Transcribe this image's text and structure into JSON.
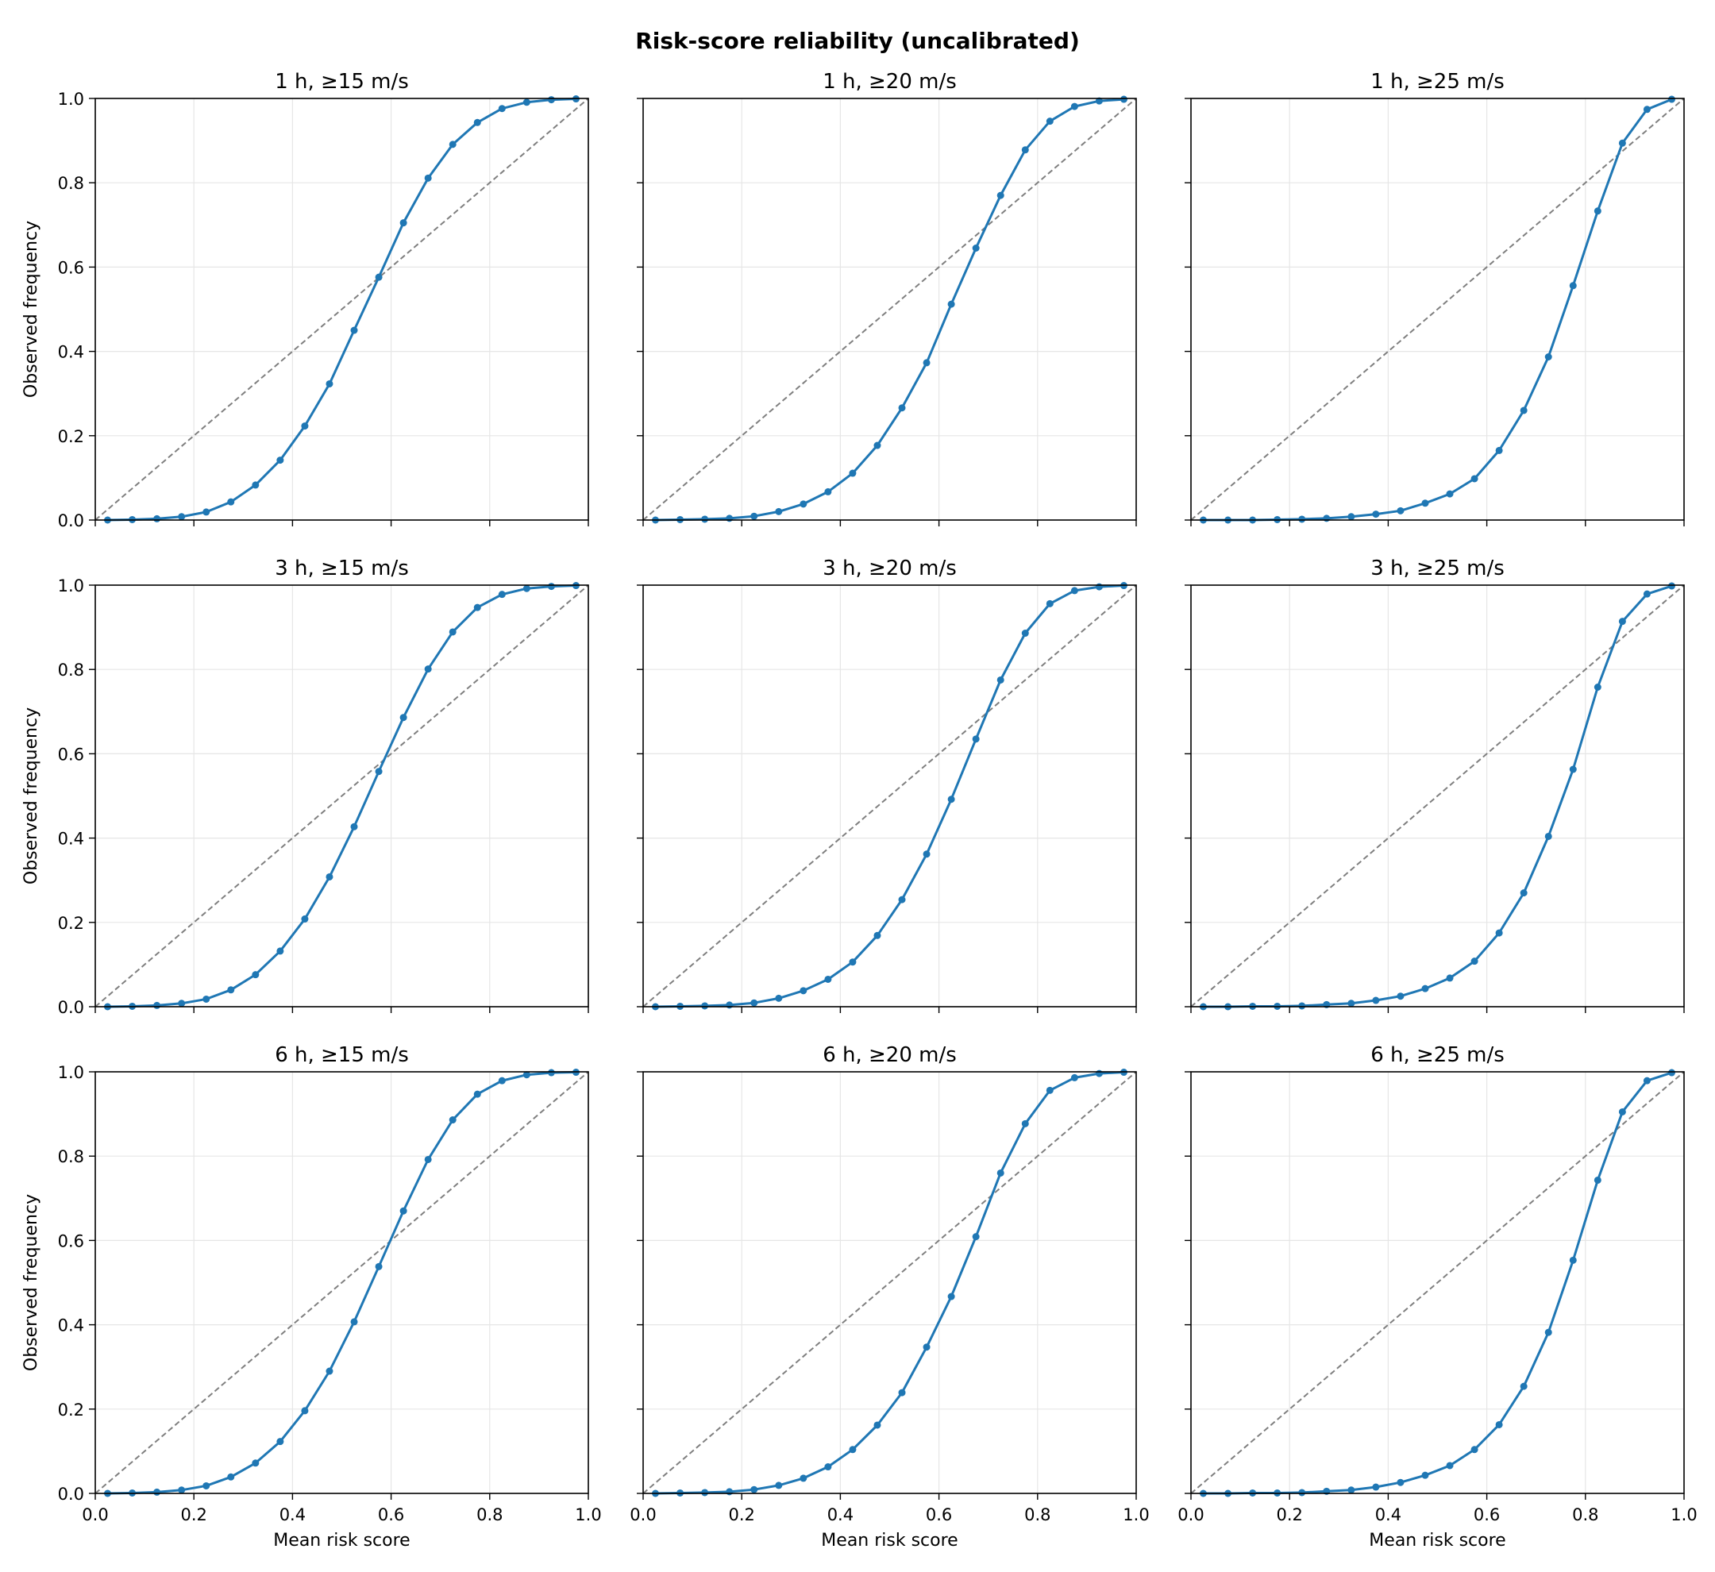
{
  "figure_title": "Risk-score reliability (uncalibrated)",
  "colors": {
    "series": "#1f77b4",
    "diagonal": "#7f7f7f",
    "grid": "#e6e6e6",
    "axes": "#000000"
  },
  "chart_data": [
    {
      "type": "line",
      "title": "1 h, ≥15 m/s",
      "xlabel": "",
      "ylabel": "Observed frequency",
      "xlim": [
        0,
        1
      ],
      "ylim": [
        0,
        1
      ],
      "grid": true,
      "diagonal": true,
      "x": [
        0.025,
        0.075,
        0.125,
        0.175,
        0.225,
        0.275,
        0.325,
        0.375,
        0.425,
        0.475,
        0.525,
        0.575,
        0.625,
        0.675,
        0.725,
        0.775,
        0.825,
        0.875,
        0.925,
        0.975
      ],
      "y": [
        0.0,
        0.001,
        0.003,
        0.008,
        0.019,
        0.043,
        0.083,
        0.142,
        0.223,
        0.323,
        0.45,
        0.576,
        0.705,
        0.811,
        0.891,
        0.943,
        0.976,
        0.991,
        0.997,
        0.999
      ]
    },
    {
      "type": "line",
      "title": "1 h, ≥20 m/s",
      "xlabel": "",
      "ylabel": "",
      "xlim": [
        0,
        1
      ],
      "ylim": [
        0,
        1
      ],
      "grid": true,
      "diagonal": true,
      "x": [
        0.025,
        0.075,
        0.125,
        0.175,
        0.225,
        0.275,
        0.325,
        0.375,
        0.425,
        0.475,
        0.525,
        0.575,
        0.625,
        0.675,
        0.725,
        0.775,
        0.825,
        0.875,
        0.925,
        0.975
      ],
      "y": [
        0.0,
        0.001,
        0.002,
        0.004,
        0.009,
        0.02,
        0.038,
        0.067,
        0.111,
        0.177,
        0.266,
        0.373,
        0.512,
        0.645,
        0.77,
        0.878,
        0.946,
        0.981,
        0.994,
        0.998
      ]
    },
    {
      "type": "line",
      "title": "1 h, ≥25 m/s",
      "xlabel": "",
      "ylabel": "",
      "xlim": [
        0,
        1
      ],
      "ylim": [
        0,
        1
      ],
      "grid": true,
      "diagonal": true,
      "x": [
        0.025,
        0.075,
        0.125,
        0.175,
        0.225,
        0.275,
        0.325,
        0.375,
        0.425,
        0.475,
        0.525,
        0.575,
        0.625,
        0.675,
        0.725,
        0.775,
        0.825,
        0.875,
        0.925,
        0.975
      ],
      "y": [
        0.0,
        0.0,
        0.0,
        0.001,
        0.002,
        0.004,
        0.008,
        0.014,
        0.022,
        0.04,
        0.062,
        0.098,
        0.165,
        0.26,
        0.387,
        0.556,
        0.733,
        0.894,
        0.974,
        0.998
      ]
    },
    {
      "type": "line",
      "title": "3 h, ≥15 m/s",
      "xlabel": "",
      "ylabel": "Observed frequency",
      "xlim": [
        0,
        1
      ],
      "ylim": [
        0,
        1
      ],
      "grid": true,
      "diagonal": true,
      "x": [
        0.025,
        0.075,
        0.125,
        0.175,
        0.225,
        0.275,
        0.325,
        0.375,
        0.425,
        0.475,
        0.525,
        0.575,
        0.625,
        0.675,
        0.725,
        0.775,
        0.825,
        0.875,
        0.925,
        0.975
      ],
      "y": [
        0.0,
        0.001,
        0.003,
        0.008,
        0.018,
        0.04,
        0.076,
        0.132,
        0.208,
        0.308,
        0.427,
        0.558,
        0.686,
        0.801,
        0.889,
        0.947,
        0.978,
        0.992,
        0.997,
        0.999
      ]
    },
    {
      "type": "line",
      "title": "3 h, ≥20 m/s",
      "xlabel": "",
      "ylabel": "",
      "xlim": [
        0,
        1
      ],
      "ylim": [
        0,
        1
      ],
      "grid": true,
      "diagonal": true,
      "x": [
        0.025,
        0.075,
        0.125,
        0.175,
        0.225,
        0.275,
        0.325,
        0.375,
        0.425,
        0.475,
        0.525,
        0.575,
        0.625,
        0.675,
        0.725,
        0.775,
        0.825,
        0.875,
        0.925,
        0.975
      ],
      "y": [
        0.0,
        0.001,
        0.002,
        0.004,
        0.009,
        0.02,
        0.038,
        0.065,
        0.106,
        0.169,
        0.254,
        0.362,
        0.492,
        0.635,
        0.775,
        0.886,
        0.956,
        0.987,
        0.996,
        0.999
      ]
    },
    {
      "type": "line",
      "title": "3 h, ≥25 m/s",
      "xlabel": "",
      "ylabel": "",
      "xlim": [
        0,
        1
      ],
      "ylim": [
        0,
        1
      ],
      "grid": true,
      "diagonal": true,
      "x": [
        0.025,
        0.075,
        0.125,
        0.175,
        0.225,
        0.275,
        0.325,
        0.375,
        0.425,
        0.475,
        0.525,
        0.575,
        0.625,
        0.675,
        0.725,
        0.775,
        0.825,
        0.875,
        0.925,
        0.975
      ],
      "y": [
        0.0,
        0.0,
        0.001,
        0.001,
        0.002,
        0.005,
        0.008,
        0.015,
        0.025,
        0.043,
        0.068,
        0.108,
        0.175,
        0.27,
        0.404,
        0.563,
        0.758,
        0.914,
        0.979,
        0.998
      ]
    },
    {
      "type": "line",
      "title": "6 h, ≥15 m/s",
      "xlabel": "Mean risk score",
      "ylabel": "Observed frequency",
      "xlim": [
        0,
        1
      ],
      "ylim": [
        0,
        1
      ],
      "grid": true,
      "diagonal": true,
      "x": [
        0.025,
        0.075,
        0.125,
        0.175,
        0.225,
        0.275,
        0.325,
        0.375,
        0.425,
        0.475,
        0.525,
        0.575,
        0.625,
        0.675,
        0.725,
        0.775,
        0.825,
        0.875,
        0.925,
        0.975
      ],
      "y": [
        0.0,
        0.001,
        0.003,
        0.008,
        0.018,
        0.039,
        0.072,
        0.123,
        0.196,
        0.29,
        0.407,
        0.538,
        0.67,
        0.792,
        0.886,
        0.947,
        0.979,
        0.993,
        0.998,
        0.999
      ]
    },
    {
      "type": "line",
      "title": "6 h, ≥20 m/s",
      "xlabel": "Mean risk score",
      "ylabel": "",
      "xlim": [
        0,
        1
      ],
      "ylim": [
        0,
        1
      ],
      "grid": true,
      "diagonal": true,
      "x": [
        0.025,
        0.075,
        0.125,
        0.175,
        0.225,
        0.275,
        0.325,
        0.375,
        0.425,
        0.475,
        0.525,
        0.575,
        0.625,
        0.675,
        0.725,
        0.775,
        0.825,
        0.875,
        0.925,
        0.975
      ],
      "y": [
        0.0,
        0.001,
        0.002,
        0.004,
        0.009,
        0.019,
        0.036,
        0.063,
        0.104,
        0.162,
        0.239,
        0.347,
        0.467,
        0.609,
        0.76,
        0.877,
        0.956,
        0.986,
        0.996,
        0.999
      ]
    },
    {
      "type": "line",
      "title": "6 h, ≥25 m/s",
      "xlabel": "Mean risk score",
      "ylabel": "",
      "xlim": [
        0,
        1
      ],
      "ylim": [
        0,
        1
      ],
      "grid": true,
      "diagonal": true,
      "x": [
        0.025,
        0.075,
        0.125,
        0.175,
        0.225,
        0.275,
        0.325,
        0.375,
        0.425,
        0.475,
        0.525,
        0.575,
        0.625,
        0.675,
        0.725,
        0.775,
        0.825,
        0.875,
        0.925,
        0.975
      ],
      "y": [
        0.0,
        0.0,
        0.001,
        0.001,
        0.002,
        0.005,
        0.008,
        0.015,
        0.026,
        0.043,
        0.066,
        0.104,
        0.163,
        0.254,
        0.382,
        0.553,
        0.743,
        0.905,
        0.979,
        0.998
      ]
    }
  ],
  "tick_labels": [
    "0.0",
    "0.2",
    "0.4",
    "0.6",
    "0.8",
    "1.0"
  ]
}
